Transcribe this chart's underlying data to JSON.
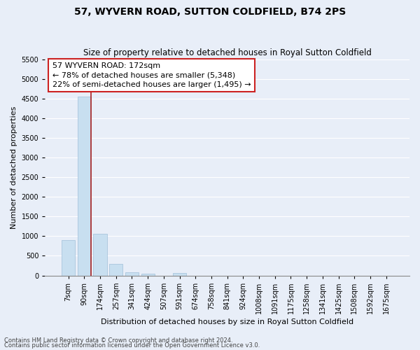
{
  "title": "57, WYVERN ROAD, SUTTON COLDFIELD, B74 2PS",
  "subtitle": "Size of property relative to detached houses in Royal Sutton Coldfield",
  "xlabel": "Distribution of detached houses by size in Royal Sutton Coldfield",
  "ylabel": "Number of detached properties",
  "footnote1": "Contains HM Land Registry data © Crown copyright and database right 2024.",
  "footnote2": "Contains public sector information licensed under the Open Government Licence v3.0.",
  "annotation_title": "57 WYVERN ROAD: 172sqm",
  "annotation_line1": "← 78% of detached houses are smaller (5,348)",
  "annotation_line2": "22% of semi-detached houses are larger (1,495) →",
  "categories": [
    "7sqm",
    "90sqm",
    "174sqm",
    "257sqm",
    "341sqm",
    "424sqm",
    "507sqm",
    "591sqm",
    "674sqm",
    "758sqm",
    "841sqm",
    "924sqm",
    "1008sqm",
    "1091sqm",
    "1175sqm",
    "1258sqm",
    "1341sqm",
    "1425sqm",
    "1508sqm",
    "1592sqm",
    "1675sqm"
  ],
  "values": [
    900,
    4550,
    1060,
    300,
    80,
    50,
    0,
    60,
    0,
    0,
    0,
    0,
    0,
    0,
    0,
    0,
    0,
    0,
    0,
    0,
    0
  ],
  "property_line_after_index": 1,
  "bar_color": "#c8dff0",
  "bar_edge_color": "#a0bfd8",
  "property_line_color": "#aa2222",
  "ylim": [
    0,
    5500
  ],
  "yticks": [
    0,
    500,
    1000,
    1500,
    2000,
    2500,
    3000,
    3500,
    4000,
    4500,
    5000,
    5500
  ],
  "background_color": "#e8eef8",
  "plot_bg_color": "#e8eef8",
  "annotation_box_color": "#ffffff",
  "annotation_box_edge": "#cc2222",
  "grid_color": "#ffffff",
  "title_fontsize": 10,
  "subtitle_fontsize": 8.5,
  "xlabel_fontsize": 8,
  "ylabel_fontsize": 8,
  "tick_fontsize": 7,
  "annotation_fontsize": 8
}
